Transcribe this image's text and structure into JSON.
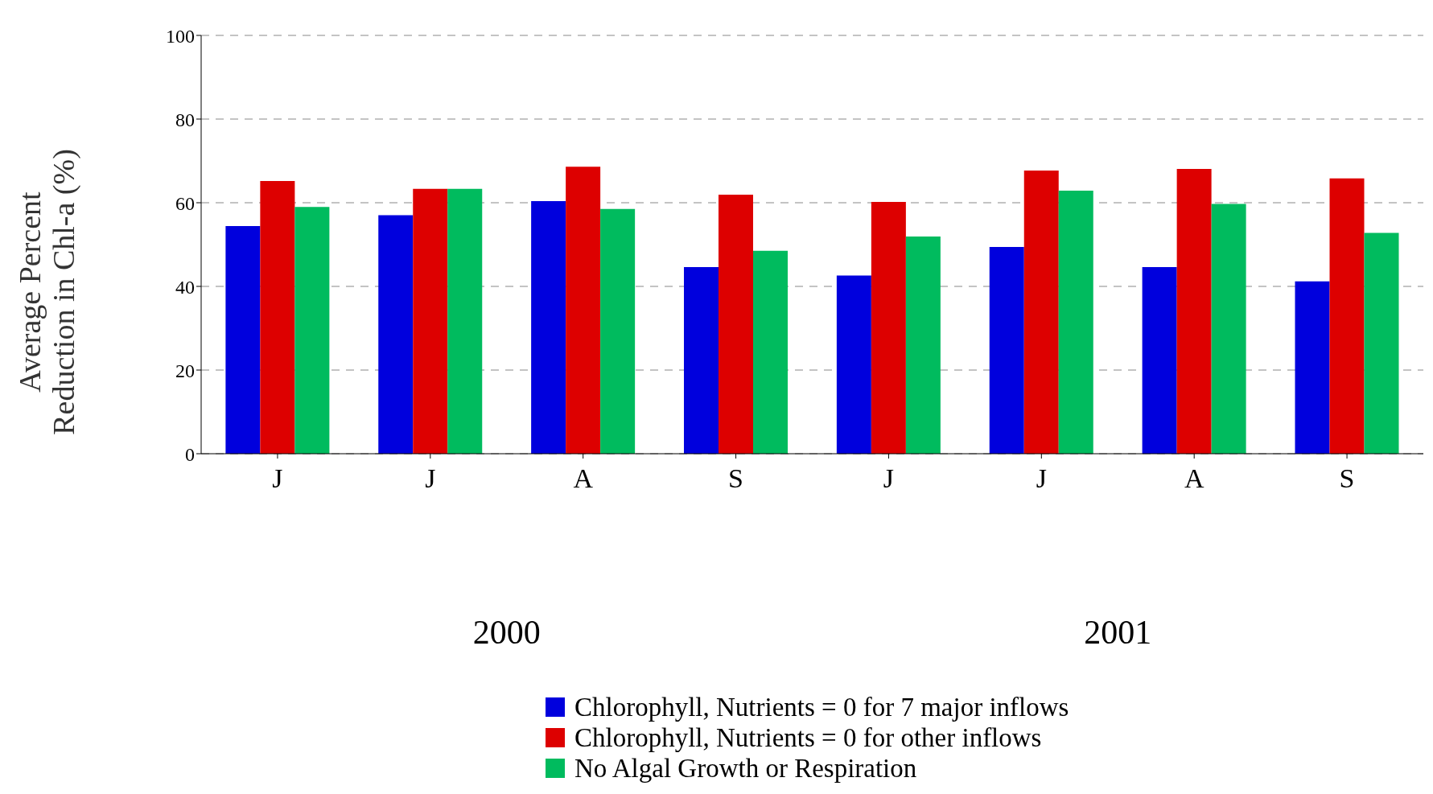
{
  "chart_data": {
    "type": "bar",
    "ylabel": "Average Percent Reduction in Chl-a (%)",
    "categories": [
      "J",
      "J",
      "A",
      "S",
      "J",
      "J",
      "A",
      "S"
    ],
    "series": [
      {
        "name": "Chlorophyll, Nutrients = 0 for 7 major inflows",
        "color": "#0000dd",
        "values": [
          54.4,
          57.0,
          60.4,
          44.6,
          42.6,
          49.4,
          44.6,
          41.2
        ]
      },
      {
        "name": "Chlorophyll, Nutrients = 0 for other inflows",
        "color": "#dd0000",
        "values": [
          65.2,
          63.3,
          68.6,
          61.9,
          60.2,
          67.7,
          68.1,
          65.8
        ]
      },
      {
        "name": "No Algal Growth or Respiration",
        "color": "#00bb5e",
        "values": [
          59.0,
          63.3,
          58.5,
          48.5,
          51.9,
          62.9,
          59.7,
          52.8
        ]
      }
    ],
    "annotations": [
      "2000",
      "2001"
    ],
    "ylim": [
      0,
      100
    ],
    "yticks": [
      0,
      20,
      40,
      60,
      80,
      100
    ],
    "grid": "y",
    "legend": "bottom"
  }
}
